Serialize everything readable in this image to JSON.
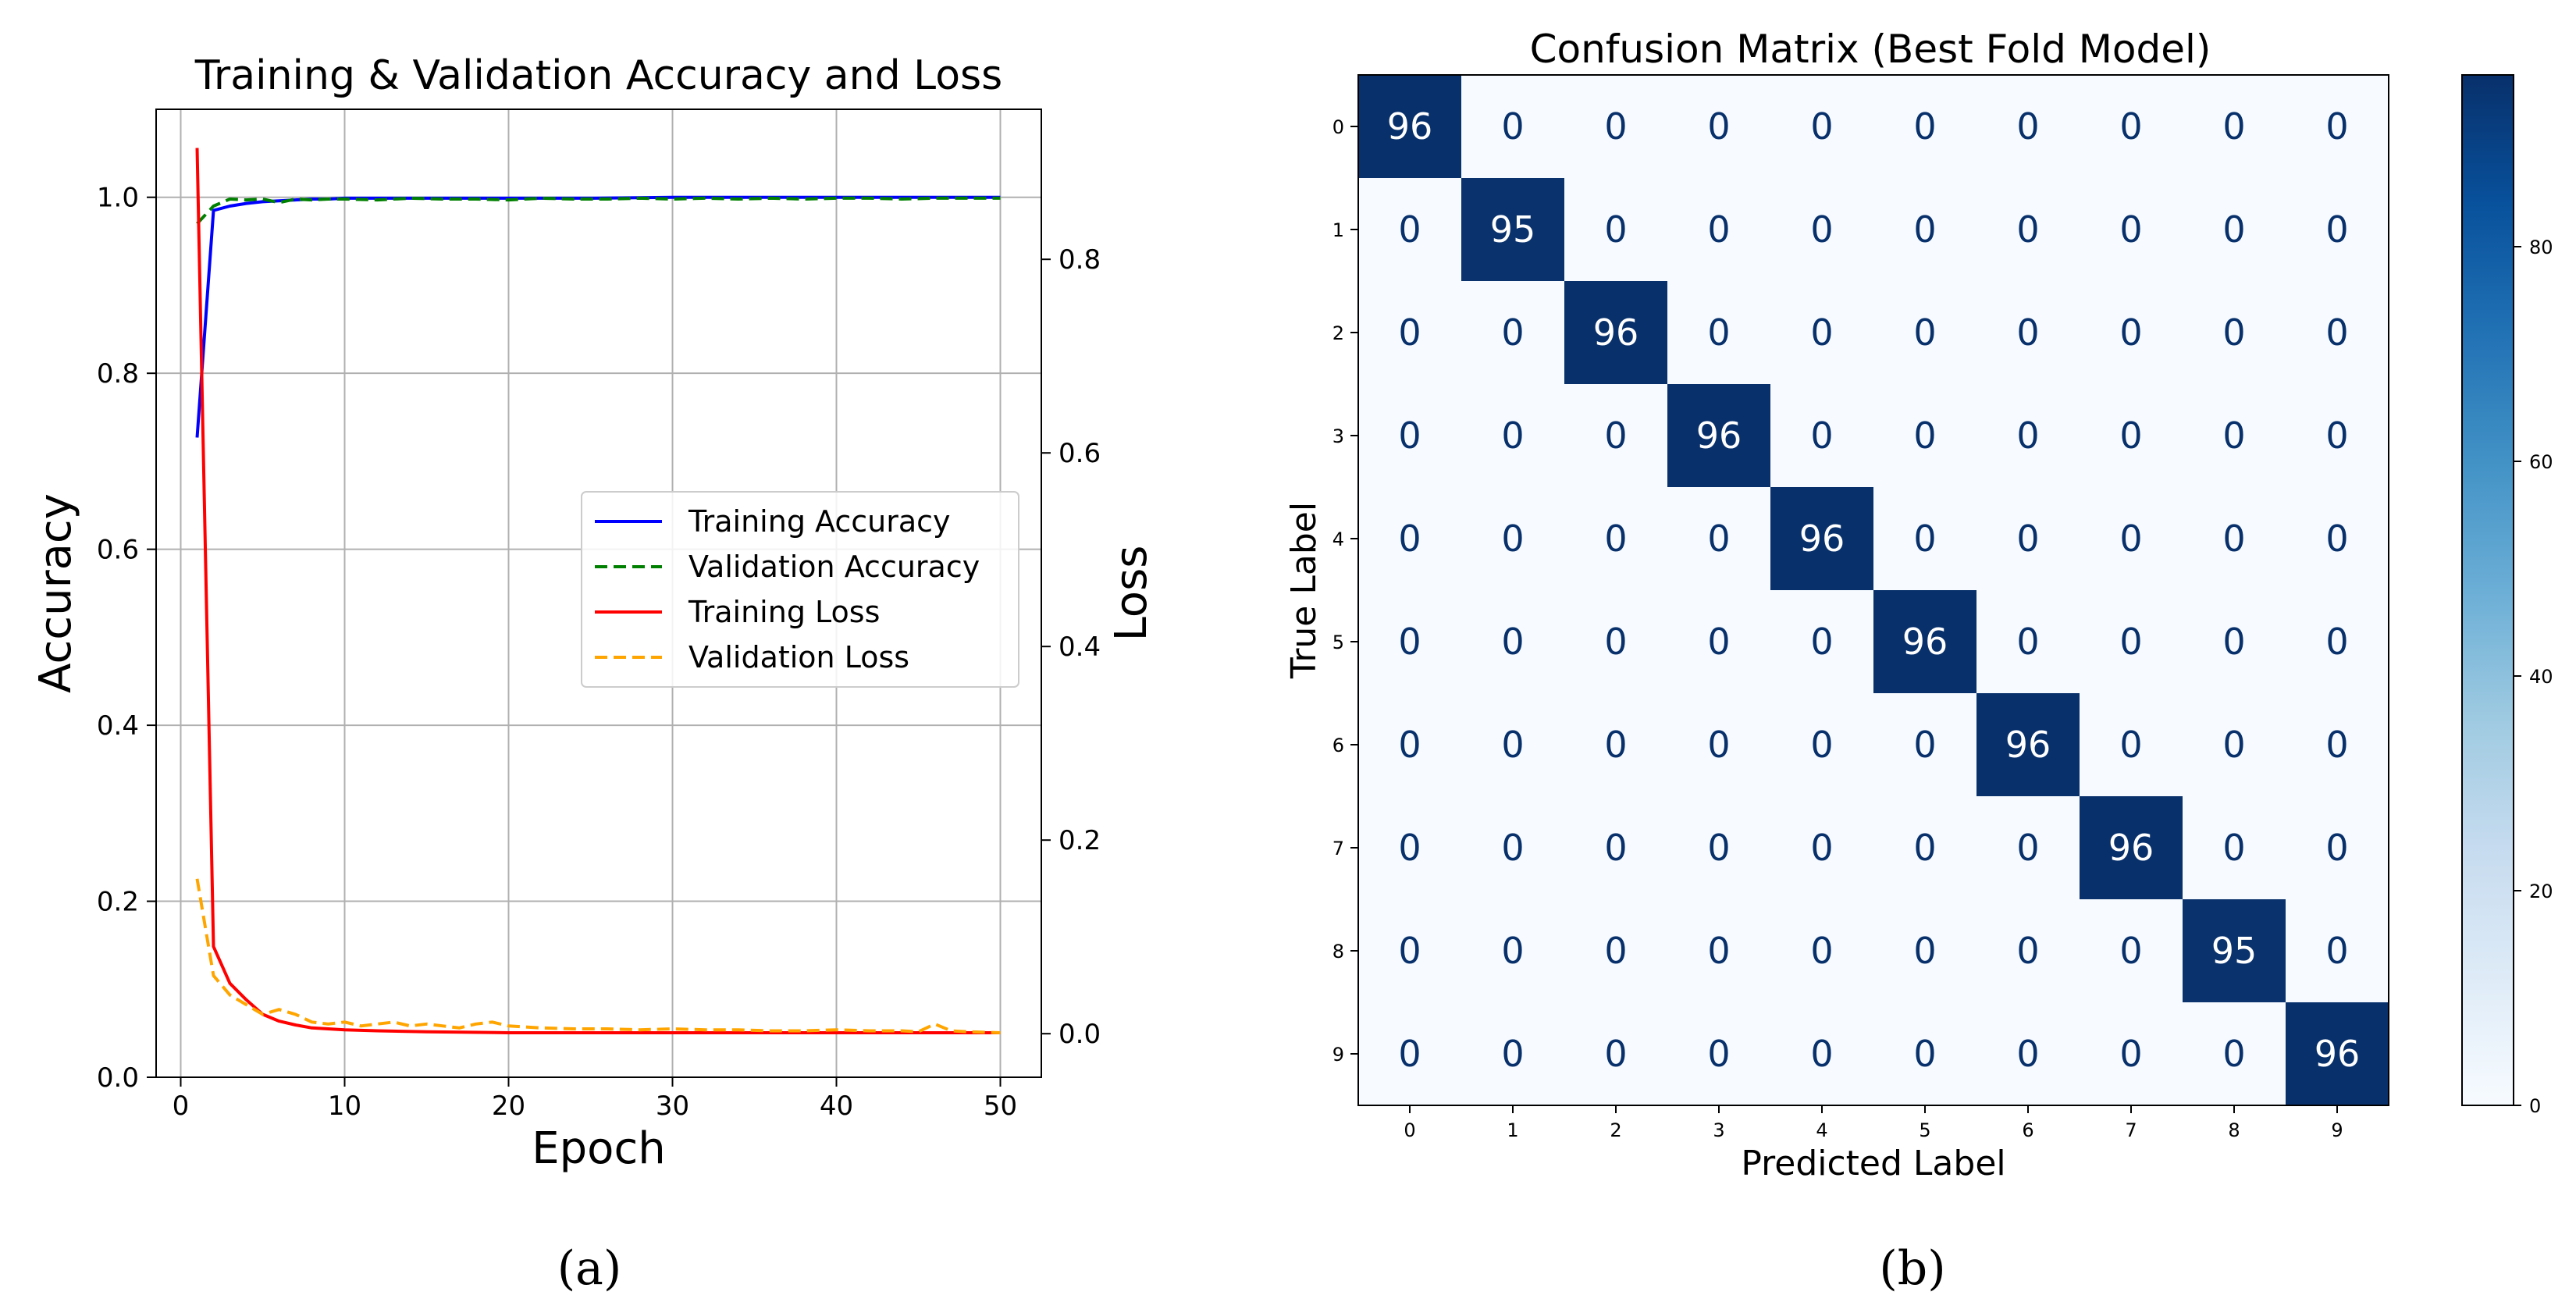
{
  "panel_a": {
    "label": "(a)",
    "chart_data": {
      "type": "line",
      "title": "Training & Validation Accuracy and Loss",
      "xlabel": "Epoch",
      "ylabel_left": "Accuracy",
      "ylabel_right": "Loss",
      "xlim": [
        -1.5,
        52.5
      ],
      "ylim_left": [
        0,
        1.1
      ],
      "ylim_right": [
        -0.045,
        0.955
      ],
      "x_ticks": [
        0,
        10,
        20,
        30,
        40,
        50
      ],
      "y_ticks_left": [
        0.0,
        0.2,
        0.4,
        0.6,
        0.8,
        1.0
      ],
      "y_ticks_right": [
        0.0,
        0.2,
        0.4,
        0.6,
        0.8
      ],
      "grid": true,
      "legend_position": "center-right",
      "series": [
        {
          "name": "Training Accuracy",
          "axis": "left",
          "color": "#0000ff",
          "dash": "solid",
          "x": [
            1,
            2,
            3,
            4,
            5,
            6,
            7,
            8,
            9,
            10,
            15,
            20,
            25,
            30,
            35,
            40,
            45,
            50
          ],
          "y": [
            0.727,
            0.985,
            0.99,
            0.993,
            0.995,
            0.996,
            0.997,
            0.998,
            0.998,
            0.999,
            0.999,
            0.999,
            0.999,
            1.0,
            1.0,
            1.0,
            1.0,
            1.0
          ]
        },
        {
          "name": "Validation Accuracy",
          "axis": "left",
          "color": "#008000",
          "dash": "dashed",
          "x": [
            1,
            2,
            3,
            4,
            5,
            6,
            7,
            8,
            9,
            10,
            12,
            14,
            16,
            18,
            20,
            22,
            24,
            26,
            28,
            30,
            32,
            34,
            36,
            38,
            40,
            42,
            44,
            46,
            48,
            50
          ],
          "y": [
            0.97,
            0.99,
            0.998,
            0.997,
            0.998,
            0.994,
            0.998,
            0.997,
            0.998,
            0.998,
            0.997,
            0.999,
            0.998,
            0.998,
            0.997,
            0.999,
            0.998,
            0.998,
            0.999,
            0.998,
            0.999,
            0.998,
            0.999,
            0.998,
            0.999,
            0.999,
            0.998,
            0.999,
            0.999,
            0.999
          ]
        },
        {
          "name": "Training Loss",
          "axis": "right",
          "color": "#ff0000",
          "dash": "solid",
          "x": [
            1,
            2,
            3,
            4,
            5,
            6,
            7,
            8,
            10,
            12,
            15,
            20,
            25,
            30,
            35,
            40,
            45,
            50
          ],
          "y": [
            0.915,
            0.09,
            0.052,
            0.035,
            0.02,
            0.013,
            0.009,
            0.006,
            0.004,
            0.003,
            0.002,
            0.001,
            0.001,
            0.001,
            0.001,
            0.001,
            0.001,
            0.001
          ]
        },
        {
          "name": "Validation Loss",
          "axis": "right",
          "color": "#ffa500",
          "dash": "dashed",
          "x": [
            1,
            2,
            3,
            4,
            5,
            6,
            7,
            8,
            9,
            10,
            11,
            12,
            13,
            14,
            15,
            16,
            17,
            18,
            19,
            20,
            22,
            24,
            26,
            28,
            30,
            32,
            34,
            36,
            38,
            40,
            42,
            44,
            45,
            46,
            47,
            48,
            50
          ],
          "y": [
            0.16,
            0.06,
            0.04,
            0.03,
            0.02,
            0.025,
            0.02,
            0.012,
            0.01,
            0.012,
            0.008,
            0.01,
            0.012,
            0.008,
            0.01,
            0.008,
            0.006,
            0.01,
            0.012,
            0.008,
            0.006,
            0.005,
            0.005,
            0.004,
            0.005,
            0.004,
            0.004,
            0.003,
            0.003,
            0.004,
            0.003,
            0.003,
            0.002,
            0.01,
            0.003,
            0.002,
            0.001
          ]
        }
      ]
    }
  },
  "panel_b": {
    "label": "(b)",
    "chart_data": {
      "type": "heatmap",
      "title": "Confusion Matrix (Best Fold Model)",
      "xlabel": "Predicted Label",
      "ylabel": "True Label",
      "x_categories": [
        "0",
        "1",
        "2",
        "3",
        "4",
        "5",
        "6",
        "7",
        "8",
        "9"
      ],
      "y_categories": [
        "0",
        "1",
        "2",
        "3",
        "4",
        "5",
        "6",
        "7",
        "8",
        "9"
      ],
      "values": [
        [
          96,
          0,
          0,
          0,
          0,
          0,
          0,
          0,
          0,
          0
        ],
        [
          0,
          95,
          0,
          0,
          0,
          0,
          0,
          0,
          0,
          0
        ],
        [
          0,
          0,
          96,
          0,
          0,
          0,
          0,
          0,
          0,
          0
        ],
        [
          0,
          0,
          0,
          96,
          0,
          0,
          0,
          0,
          0,
          0
        ],
        [
          0,
          0,
          0,
          0,
          96,
          0,
          0,
          0,
          0,
          0
        ],
        [
          0,
          0,
          0,
          0,
          0,
          96,
          0,
          0,
          0,
          0
        ],
        [
          0,
          0,
          0,
          0,
          0,
          0,
          96,
          0,
          0,
          0
        ],
        [
          0,
          0,
          0,
          0,
          0,
          0,
          0,
          96,
          0,
          0
        ],
        [
          0,
          0,
          0,
          0,
          0,
          0,
          0,
          0,
          95,
          0
        ],
        [
          0,
          0,
          0,
          0,
          0,
          0,
          0,
          0,
          0,
          96
        ]
      ],
      "colormap": "Blues",
      "colormap_low": "#f7fbff",
      "colormap_high": "#08306b",
      "text_color_low": "#08306b",
      "text_color_high": "#ffffff",
      "colorbar_range": [
        0,
        96
      ],
      "colorbar_ticks": [
        0,
        20,
        40,
        60,
        80
      ]
    }
  }
}
